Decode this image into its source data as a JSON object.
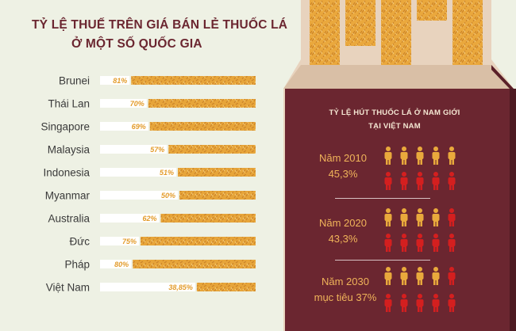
{
  "title": {
    "line1": "TỶ LỆ THUẾ TRÊN GIÁ BÁN LẺ THUỐC LÁ",
    "line2": "Ở MỘT SỐ QUỐC GIA"
  },
  "chart_data": {
    "type": "bar",
    "title": "TỶ LỆ THUẾ TRÊN GIÁ BÁN LẺ THUỐC LÁ Ở MỘT SỐ QUỐC GIA",
    "categories": [
      "Brunei",
      "Thái Lan",
      "Singapore",
      "Malaysia",
      "Indonesia",
      "Myanmar",
      "Australia",
      "Đức",
      "Pháp",
      "Việt Nam"
    ],
    "values": [
      81,
      70,
      69,
      57,
      51,
      50,
      62,
      75,
      80,
      38.85
    ],
    "value_labels": [
      "81%",
      "70%",
      "69%",
      "57%",
      "51%",
      "50%",
      "62%",
      "75%",
      "80%",
      "38,85%"
    ],
    "unit": "%",
    "ylim": [
      0,
      100
    ]
  },
  "smoking": {
    "heading_line1": "TỶ LỆ HÚT THUỐC LÁ Ở NAM GIỚI",
    "heading_line2": "TẠI VIỆT NAM",
    "groups": [
      {
        "year_label": "Năm 2010",
        "value_label": "45,3%",
        "value": 45.3
      },
      {
        "year_label": "Năm 2020",
        "value_label": "43,3%",
        "value": 43.3
      },
      {
        "year_label": "Năm 2030",
        "value_label": "mục tiêu 37%",
        "value": 37
      }
    ]
  },
  "colors": {
    "background": "#eef1e4",
    "dark_panel": "#6b2630",
    "title": "#6b2630",
    "tobacco": "#e9a93c",
    "bar_white": "#ffffff",
    "accent_text": "#f0b45a",
    "person_red": "#d41f1f",
    "person_orange": "#e9a93c"
  }
}
